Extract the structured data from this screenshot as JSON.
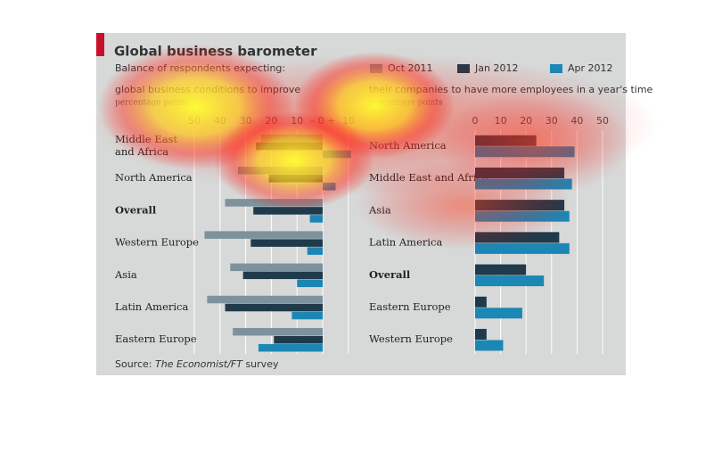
{
  "header": {
    "title": "Global business barometer",
    "subtitle": "Balance of respondents expecting:"
  },
  "chart_data": [
    {
      "type": "bar",
      "orientation": "horizontal",
      "subtitle": "global business conditions to improve",
      "unit": "percentage points",
      "categories": [
        "Middle East and Africa",
        "North America",
        "Overall",
        "Western Europe",
        "Asia",
        "Latin America",
        "Eastern Europe"
      ],
      "series": [
        {
          "name": "Oct 2011",
          "color": "#7d929c",
          "values": [
            -24,
            -33,
            -38,
            -46,
            -36,
            -45,
            -35
          ]
        },
        {
          "name": "Jan 2012",
          "color": "#1f3a4a",
          "values": [
            -26,
            -21,
            -27,
            -28,
            -31,
            -38,
            -19
          ]
        },
        {
          "name": "Apr 2012",
          "color": "#1c87b5",
          "values": [
            11,
            5,
            -5,
            -6,
            -10,
            -12,
            -25
          ]
        }
      ],
      "xlim": [
        -52,
        12
      ],
      "xticks": [
        {
          "value": -50,
          "label": "50"
        },
        {
          "value": -40,
          "label": "40"
        },
        {
          "value": -30,
          "label": "30"
        },
        {
          "value": -20,
          "label": "20"
        },
        {
          "value": -10,
          "label": "10"
        },
        {
          "value": 0,
          "label": "– 0 +"
        },
        10
      ],
      "grid": true
    },
    {
      "type": "bar",
      "orientation": "horizontal",
      "subtitle": "their companies to have more employees in a year's time",
      "unit": "percentage points",
      "categories": [
        "North America",
        "Middle East and Africa",
        "Asia",
        "Latin America",
        "Overall",
        "Eastern Europe",
        "Western Europe"
      ],
      "series": [
        {
          "color": "#7d929c",
          "values": [
            null,
            null,
            null,
            null,
            null,
            null,
            null
          ]
        },
        {
          "color": "#1f3a4a",
          "values": [
            24,
            35,
            35,
            33,
            20,
            4.5,
            4.5
          ]
        },
        {
          "color": "#1c87b5",
          "values": [
            39,
            38,
            37,
            37,
            27,
            18.5,
            11
          ]
        }
      ],
      "xlim": [
        0,
        52
      ],
      "xticks": [
        0,
        10,
        20,
        30,
        40,
        50
      ],
      "grid": true
    }
  ],
  "source": [
    "Source:",
    "The Economist/FT",
    "survey"
  ]
}
